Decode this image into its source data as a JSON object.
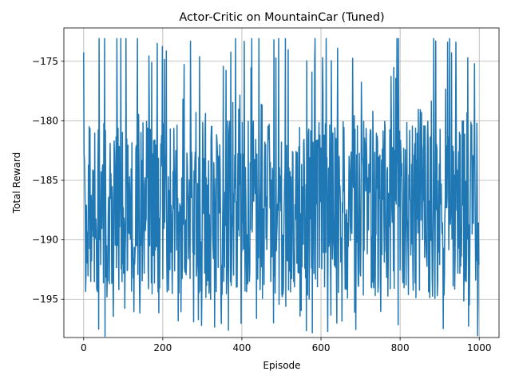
{
  "chart_data": {
    "type": "line",
    "title": "Actor-Critic on MountainCar (Tuned)",
    "xlabel": "Episode",
    "ylabel": "Total Reward",
    "xlim": [
      -50,
      1050
    ],
    "ylim": [
      -198.2,
      -172.2
    ],
    "xticks": [
      0,
      200,
      400,
      600,
      800,
      1000
    ],
    "yticks": [
      -195,
      -190,
      -185,
      -180,
      -175
    ],
    "xtick_labels": [
      "0",
      "200",
      "400",
      "600",
      "800",
      "1000"
    ],
    "ytick_labels": [
      "−195",
      "−190",
      "−185",
      "−180",
      "−175"
    ],
    "grid": true,
    "series": [
      {
        "color": "#1f77b4",
        "num_points": 1000,
        "range": [
          -198.1,
          -173.1
        ],
        "typical_band": [
          -195,
          -180
        ],
        "peaks": [
          {
            "x": 84,
            "y": -173.1
          },
          {
            "x": 186,
            "y": -173.5
          },
          {
            "x": 293,
            "y": -174.6
          },
          {
            "x": 604,
            "y": -174.7
          },
          {
            "x": 920,
            "y": -173.4
          },
          {
            "x": 941,
            "y": -173.4
          }
        ],
        "troughs": [
          {
            "x": 54,
            "y": -198.1
          },
          {
            "x": 38,
            "y": -197.5
          },
          {
            "x": 239,
            "y": -196.8
          },
          {
            "x": 437,
            "y": -196.6
          },
          {
            "x": 547,
            "y": -196.4
          }
        ]
      }
    ]
  }
}
